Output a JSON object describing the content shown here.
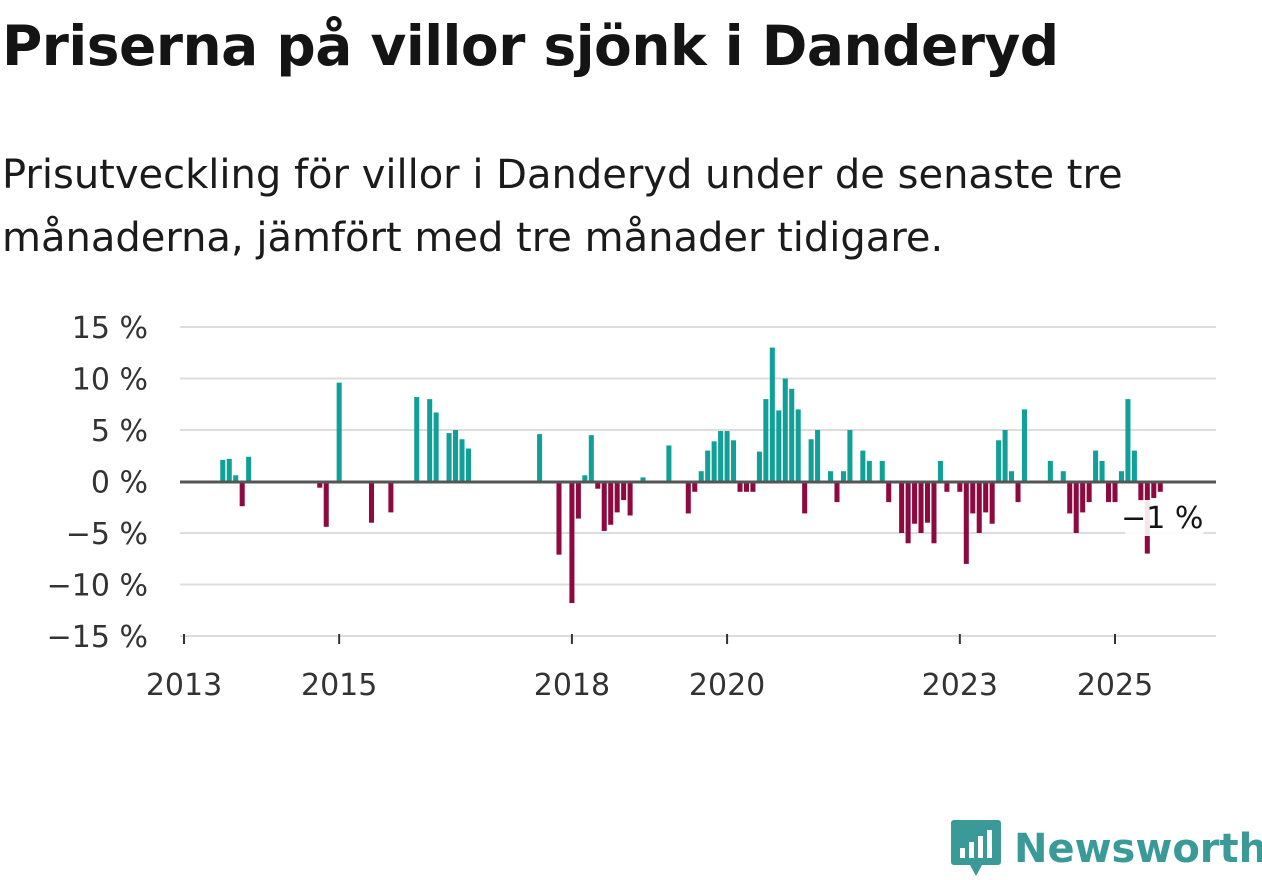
{
  "header": {
    "title": "Priserna på villor sjönk i Danderyd",
    "subtitle": "Prisutveckling för villor i Danderyd under de senaste tre månaderna, jämfört med tre månader tidigare."
  },
  "brand": {
    "name": "Newsworthy",
    "icon": "newsworthy-logo-icon",
    "color": "#3a9a97"
  },
  "colors": {
    "positive": "#10a097",
    "negative": "#8c0a3f",
    "grid": "#dddddd",
    "zero": "#555555"
  },
  "chart_data": {
    "type": "bar",
    "title": "Priserna på villor sjönk i Danderyd",
    "xlabel": "",
    "ylabel": "",
    "ylim": [
      -15,
      15
    ],
    "xlim": [
      2013.0,
      2026.3
    ],
    "grid": true,
    "y_ticks": [
      15,
      10,
      5,
      0,
      -5,
      -10,
      -15
    ],
    "y_tick_labels": [
      "15 %",
      "10 %",
      "5 %",
      "0 %",
      "−5 %",
      "−10 %",
      "−15 %"
    ],
    "x_ticks": [
      2013,
      2015,
      2018,
      2020,
      2023,
      2025
    ],
    "x_tick_labels": [
      "2013",
      "2015",
      "2018",
      "2020",
      "2023",
      "2025"
    ],
    "last_value_label": "−1 %",
    "series": [
      {
        "name": "Prisutveckling",
        "x": [
          "2013-07",
          "2013-08",
          "2013-09",
          "2013-10",
          "2013-11",
          "2014-10",
          "2014-11",
          "2015-01",
          "2015-06",
          "2015-09",
          "2016-01",
          "2016-03",
          "2016-04",
          "2016-06",
          "2016-07",
          "2016-08",
          "2016-09",
          "2017-08",
          "2017-11",
          "2018-01",
          "2018-02",
          "2018-03",
          "2018-04",
          "2018-05",
          "2018-06",
          "2018-07",
          "2018-08",
          "2018-09",
          "2018-10",
          "2018-12",
          "2019-04",
          "2019-07",
          "2019-08",
          "2019-09",
          "2019-10",
          "2019-11",
          "2019-12",
          "2020-01",
          "2020-02",
          "2020-03",
          "2020-04",
          "2020-05",
          "2020-06",
          "2020-07",
          "2020-08",
          "2020-09",
          "2020-10",
          "2020-11",
          "2020-12",
          "2021-01",
          "2021-02",
          "2021-03",
          "2021-05",
          "2021-06",
          "2021-07",
          "2021-08",
          "2021-09",
          "2021-10",
          "2021-11",
          "2022-01",
          "2022-02",
          "2022-04",
          "2022-05",
          "2022-06",
          "2022-07",
          "2022-08",
          "2022-09",
          "2022-10",
          "2022-11",
          "2023-01",
          "2023-02",
          "2023-03",
          "2023-04",
          "2023-05",
          "2023-06",
          "2023-07",
          "2023-08",
          "2023-09",
          "2023-10",
          "2023-11",
          "2024-03",
          "2024-05",
          "2024-06",
          "2024-07",
          "2024-08",
          "2024-09",
          "2024-10",
          "2024-11",
          "2024-12",
          "2025-01",
          "2025-02",
          "2025-03",
          "2025-04",
          "2025-05",
          "2025-06",
          "2025-07",
          "2025-08"
        ],
        "values": [
          2.1,
          2.2,
          0.6,
          -2.4,
          2.4,
          -0.6,
          -4.4,
          9.6,
          -4.0,
          -3.0,
          8.2,
          8.0,
          6.7,
          4.7,
          5.0,
          4.1,
          3.2,
          4.6,
          -7.1,
          -11.8,
          -3.6,
          0.6,
          4.5,
          -0.7,
          -4.8,
          -4.2,
          -3.0,
          -1.8,
          -3.3,
          0.4,
          3.5,
          -3.1,
          -1.0,
          1.0,
          3.0,
          3.9,
          4.9,
          4.9,
          4.0,
          -1.0,
          -1.0,
          -1.0,
          2.9,
          8.0,
          13.0,
          6.9,
          10.0,
          9.0,
          7.0,
          -3.1,
          4.1,
          5.0,
          1.0,
          -2.0,
          1.0,
          5.0,
          -0.1,
          3.0,
          2.0,
          2.0,
          -2.0,
          -5.0,
          -6.0,
          -4.1,
          -5.0,
          -4.0,
          -6.0,
          2.0,
          -1.0,
          -1.0,
          -8.0,
          -3.1,
          -5.0,
          -3.0,
          -4.1,
          4.0,
          5.0,
          1.0,
          -2.0,
          7.0,
          2.0,
          1.0,
          -3.1,
          -5.0,
          -3.0,
          -2.0,
          3.0,
          2.0,
          -2.0,
          -2.0,
          1.0,
          8.0,
          3.0,
          -2.0,
          -7.0,
          -1.6,
          -1.0
        ]
      }
    ]
  }
}
